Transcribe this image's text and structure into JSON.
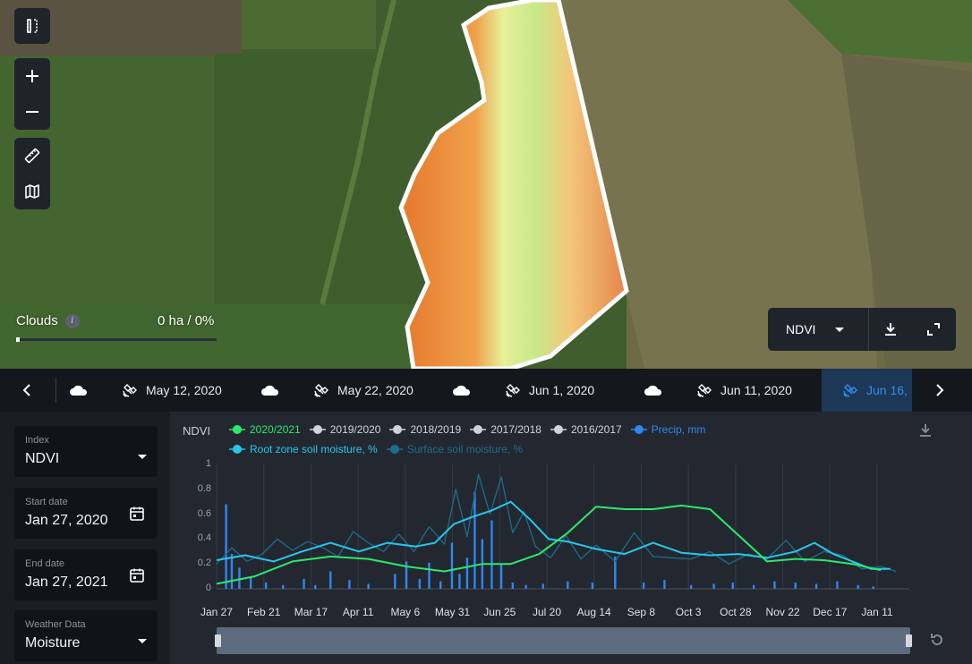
{
  "map": {
    "clouds_label": "Clouds",
    "clouds_info": "i",
    "clouds_value": "0 ha / 0%",
    "clouds_level": 0,
    "layer_selected": "NDVI",
    "tools": [
      "compare-icon",
      "zoom-in-icon",
      "zoom-out-icon",
      "ruler-icon",
      "map-layers-icon"
    ]
  },
  "dates": {
    "items": [
      {
        "label": "May 12, 2020",
        "cloud": true
      },
      {
        "label": "May 22, 2020",
        "cloud": true
      },
      {
        "label": "Jun 1, 2020",
        "cloud": true
      },
      {
        "label": "Jun 11, 2020",
        "cloud": true
      },
      {
        "label": "Jun 16,",
        "cloud": false,
        "active": true
      }
    ]
  },
  "filters": {
    "index": {
      "label": "Index",
      "value": "NDVI"
    },
    "start_date": {
      "label": "Start date",
      "value": "Jan 27, 2020"
    },
    "end_date": {
      "label": "End date",
      "value": "Jan 27, 2021"
    },
    "weather": {
      "label": "Weather Data",
      "value": "Moisture"
    }
  },
  "chart_panel": {
    "title": "NDVI"
  },
  "colors": {
    "green": "#2ee86b",
    "grey": "#cfd3d8",
    "blue": "#2f86f0",
    "cyan": "#29c6ec",
    "teal": "#1c6d8c"
  },
  "chart_data": {
    "type": "line",
    "title": "NDVI",
    "ylim": [
      0,
      1
    ],
    "y_ticks": [
      "0",
      "0.2",
      "0.4",
      "0.6",
      "0.8",
      "1"
    ],
    "x_tick_labels": [
      "Jan 27",
      "Feb 21",
      "Mar 17",
      "Apr 11",
      "May 6",
      "May 31",
      "Jun 25",
      "Jul 20",
      "Aug 14",
      "Sep 8",
      "Oct 3",
      "Oct 28",
      "Nov 22",
      "Dec 17",
      "Jan 11"
    ],
    "grid": true,
    "legend": [
      {
        "name": "2020/2021",
        "color": "#2ee86b",
        "active": true
      },
      {
        "name": "2019/2020",
        "color": "#cfd3d8",
        "active": false
      },
      {
        "name": "2018/2019",
        "color": "#cfd3d8",
        "active": false
      },
      {
        "name": "2017/2018",
        "color": "#cfd3d8",
        "active": false
      },
      {
        "name": "2016/2017",
        "color": "#cfd3d8",
        "active": false
      },
      {
        "name": "Precip, mm",
        "color": "#2f86f0",
        "active": true
      },
      {
        "name": "Root zone soil moisture, %",
        "color": "#29c6ec",
        "active": true
      },
      {
        "name": "Surface soil moisture, %",
        "color": "#1c6d8c",
        "active": true
      }
    ],
    "series": [
      {
        "name": "2020/2021",
        "x": [
          0,
          20,
          40,
          60,
          80,
          100,
          120,
          140,
          155,
          170,
          185,
          200,
          215,
          230,
          245,
          260,
          275,
          290,
          305,
          320,
          335,
          350
        ],
        "values": [
          0.04,
          0.1,
          0.22,
          0.26,
          0.24,
          0.18,
          0.14,
          0.2,
          0.2,
          0.28,
          0.45,
          0.66,
          0.64,
          0.64,
          0.67,
          0.64,
          0.43,
          0.22,
          0.24,
          0.23,
          0.2,
          0.15
        ]
      },
      {
        "name": "Root zone soil moisture, %",
        "x": [
          0,
          15,
          30,
          45,
          60,
          75,
          90,
          105,
          115,
          125,
          135,
          145,
          155,
          165,
          175,
          185,
          200,
          215,
          230,
          245,
          260,
          275,
          290,
          305,
          315,
          325,
          335,
          345,
          355
        ],
        "values": [
          0.23,
          0.27,
          0.22,
          0.3,
          0.37,
          0.3,
          0.37,
          0.34,
          0.37,
          0.52,
          0.58,
          0.63,
          0.7,
          0.56,
          0.4,
          0.38,
          0.32,
          0.28,
          0.37,
          0.29,
          0.27,
          0.28,
          0.25,
          0.3,
          0.37,
          0.28,
          0.22,
          0.16,
          0.16
        ]
      },
      {
        "name": "Surface soil moisture, %",
        "x": [
          0,
          8,
          16,
          24,
          32,
          40,
          48,
          56,
          64,
          72,
          80,
          88,
          96,
          104,
          112,
          120,
          126,
          132,
          138,
          144,
          150,
          156,
          162,
          168,
          176,
          184,
          192,
          200,
          210,
          220,
          230,
          240,
          250,
          260,
          270,
          280,
          290,
          300,
          310,
          320,
          330,
          340,
          350,
          358
        ],
        "values": [
          0.2,
          0.33,
          0.22,
          0.28,
          0.4,
          0.31,
          0.38,
          0.33,
          0.26,
          0.46,
          0.37,
          0.3,
          0.44,
          0.3,
          0.5,
          0.36,
          0.8,
          0.42,
          0.92,
          0.6,
          0.9,
          0.45,
          0.62,
          0.34,
          0.25,
          0.43,
          0.24,
          0.35,
          0.22,
          0.45,
          0.26,
          0.25,
          0.24,
          0.3,
          0.2,
          0.28,
          0.24,
          0.39,
          0.22,
          0.3,
          0.27,
          0.16,
          0.18,
          0.14
        ]
      },
      {
        "name": "Precip, mm",
        "type": "bar",
        "x": [
          5,
          8,
          12,
          18,
          26,
          35,
          46,
          52,
          60,
          70,
          80,
          94,
          100,
          107,
          112,
          118,
          124,
          128,
          132,
          136,
          140,
          145,
          150,
          156,
          163,
          172,
          185,
          198,
          210,
          225,
          236,
          250,
          262,
          272,
          283,
          294,
          305,
          316,
          327,
          338,
          346
        ],
        "values": [
          0.68,
          0.28,
          0.17,
          0.1,
          0.05,
          0.03,
          0.08,
          0.03,
          0.14,
          0.07,
          0.04,
          0.12,
          0.22,
          0.08,
          0.21,
          0.06,
          0.37,
          0.12,
          0.25,
          0.78,
          0.4,
          0.55,
          0.2,
          0.05,
          0.03,
          0.04,
          0.06,
          0.05,
          0.26,
          0.05,
          0.07,
          0.03,
          0.04,
          0.05,
          0.03,
          0.06,
          0.05,
          0.04,
          0.06,
          0.03,
          0.02
        ]
      }
    ]
  },
  "range": {
    "start": 0,
    "end": 1
  }
}
